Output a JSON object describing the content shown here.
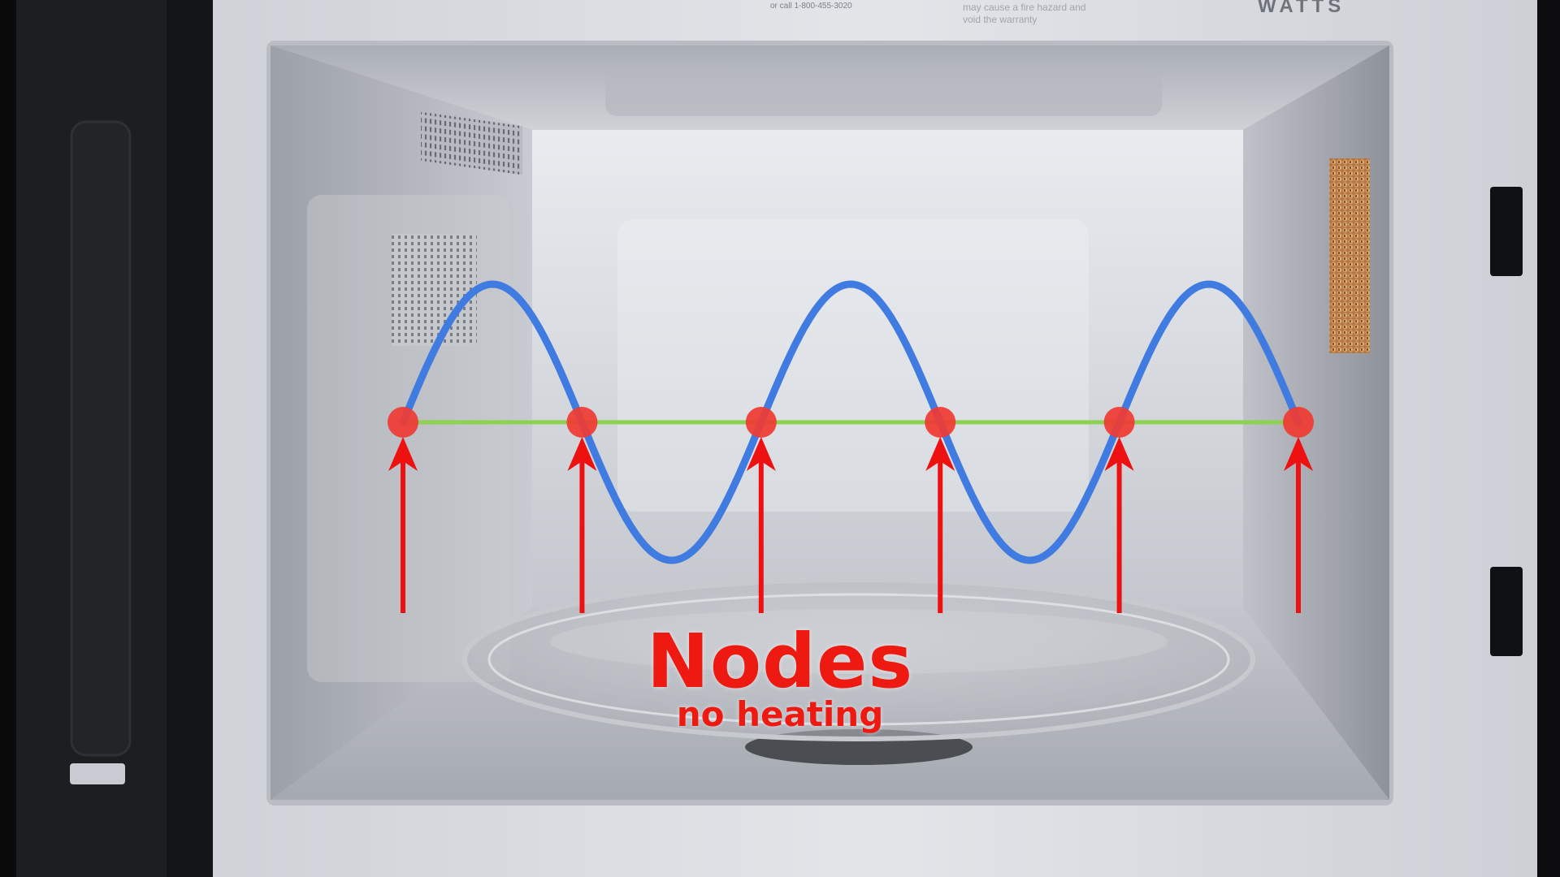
{
  "caption": {
    "title": "Nodes",
    "subtitle": "no heating"
  },
  "oven_labels": {
    "power": "WATTS",
    "phone": "or call 1-800-455-3020",
    "warning_line1": "may cause a fire hazard and",
    "warning_line2": "void the warranty"
  },
  "diagram": {
    "wave_cycles": 2.5,
    "node_count": 6
  },
  "colors": {
    "wave": "#3f7be0",
    "axis": "#8ed04f",
    "node": "#f03a32",
    "arrow": "#ee1111",
    "caption": "#ee1a12"
  }
}
